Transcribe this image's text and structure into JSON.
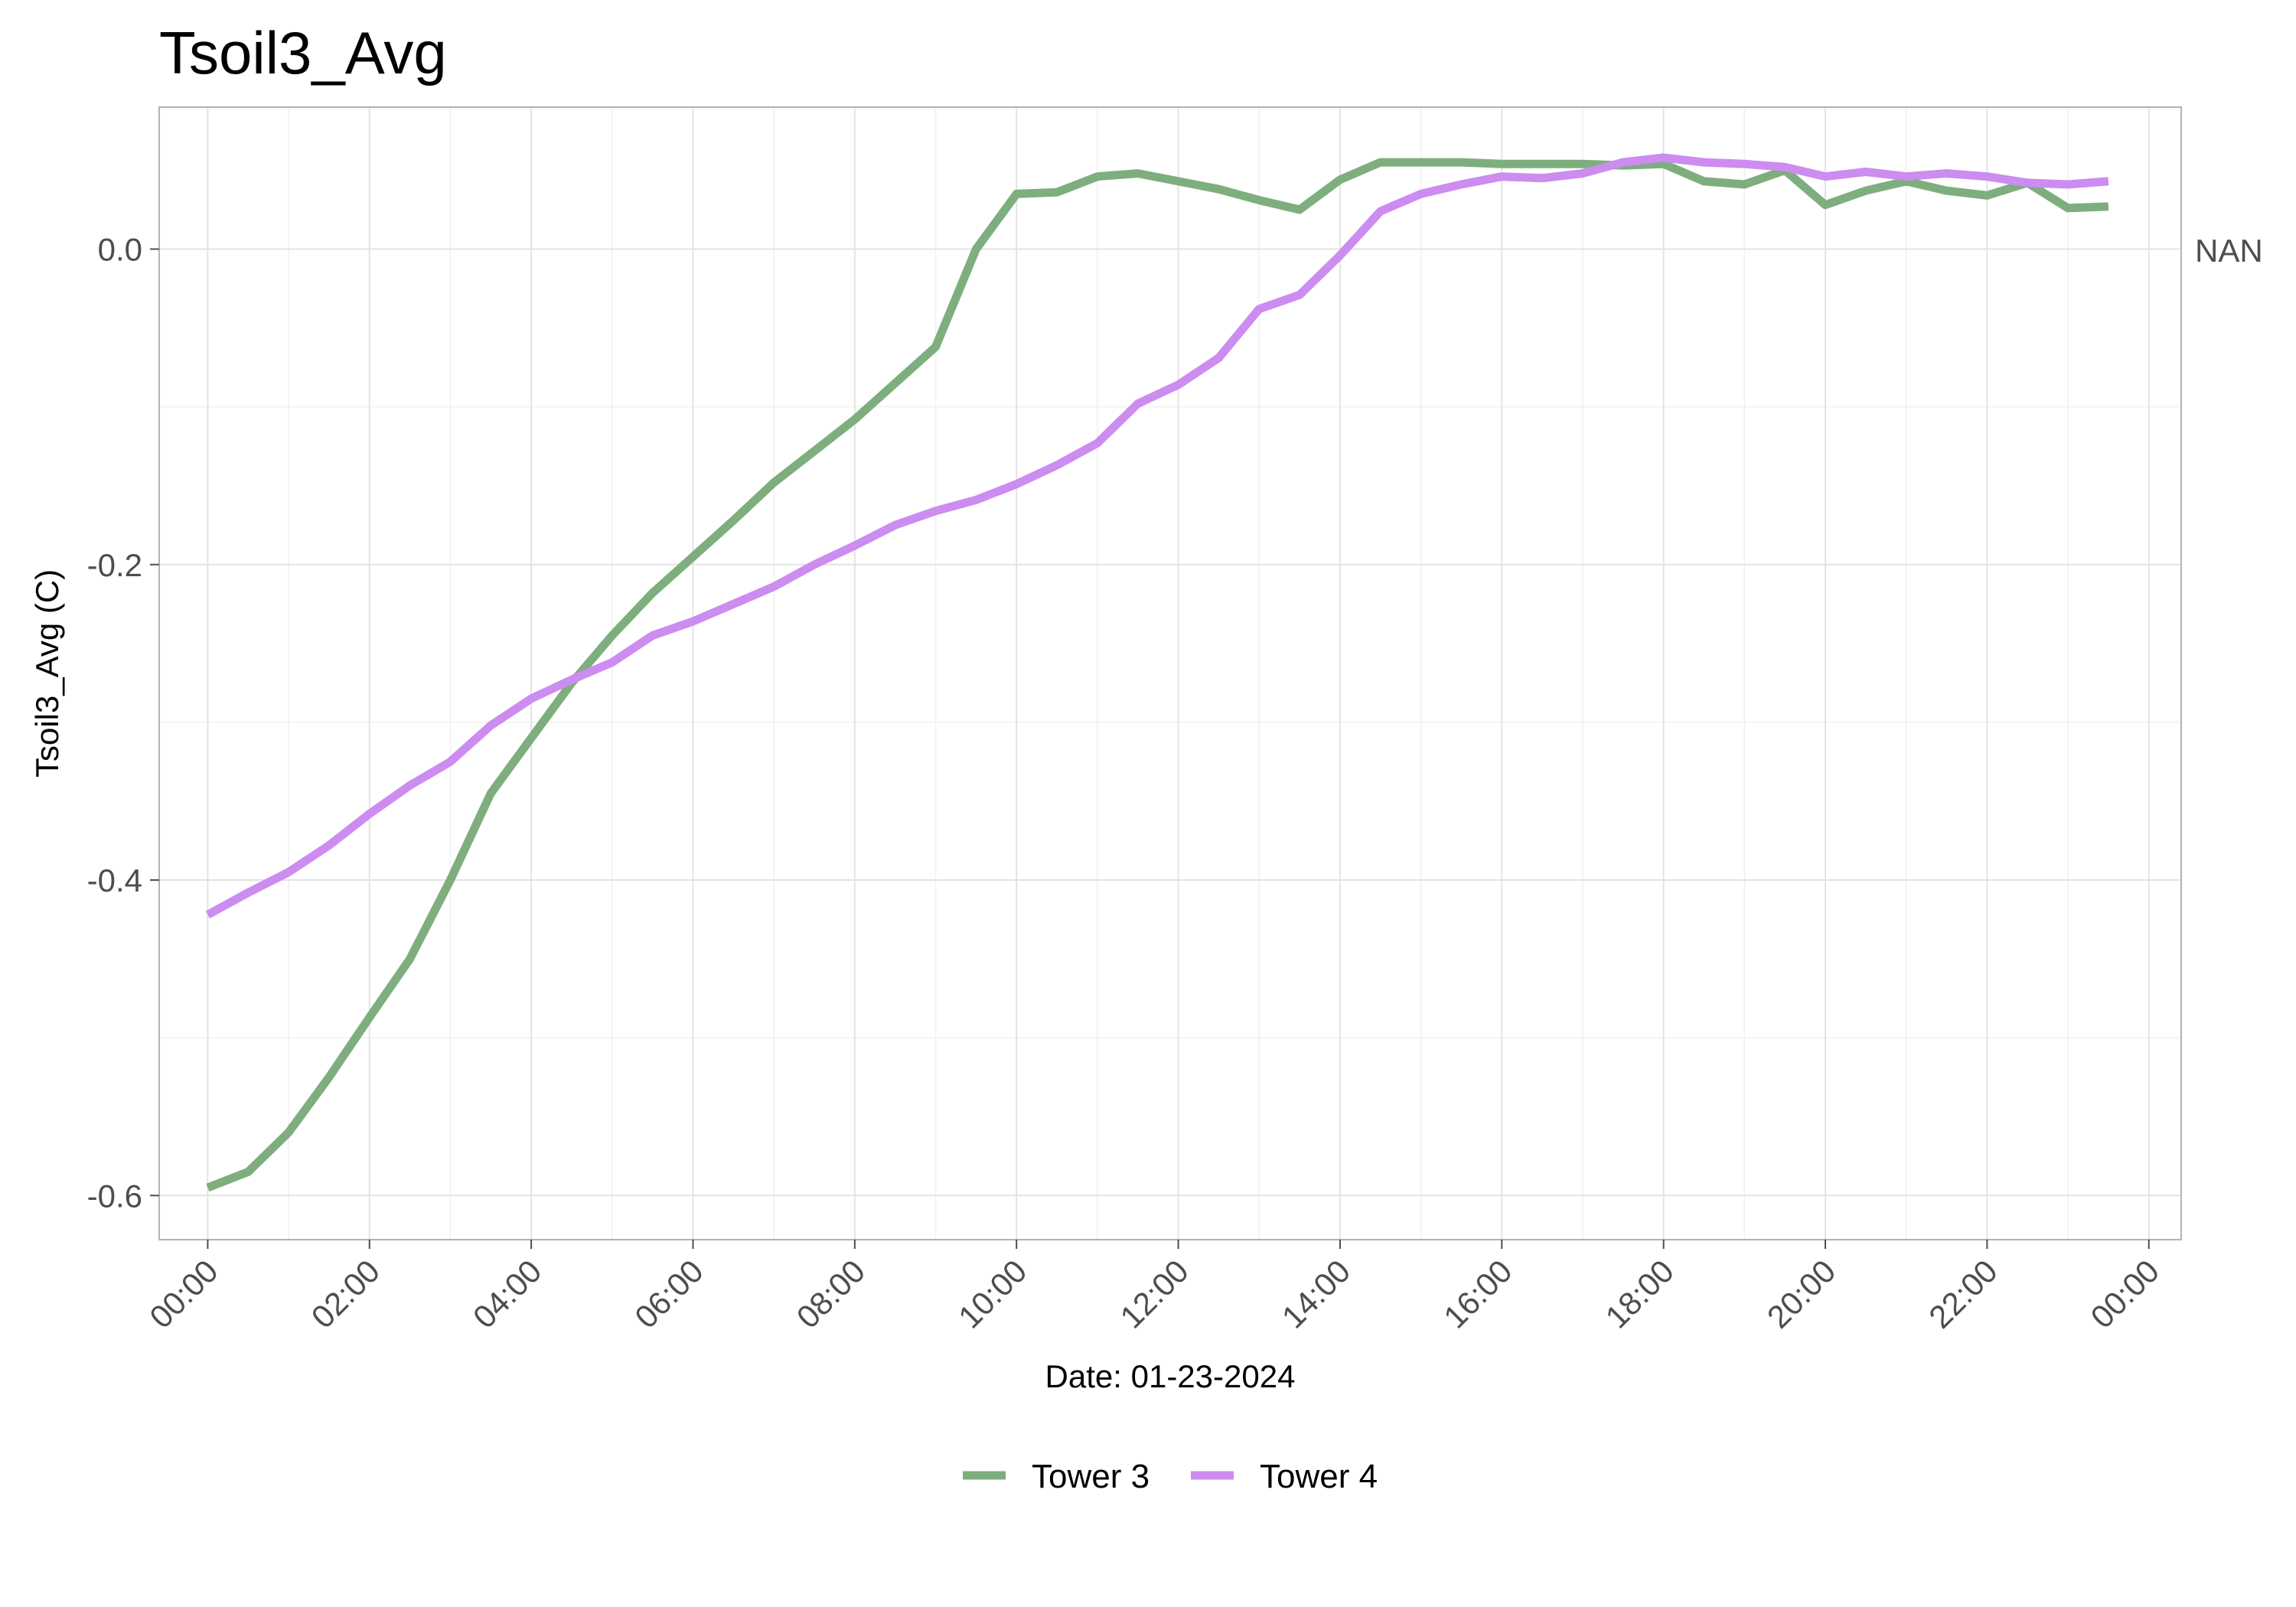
{
  "chart_data": {
    "type": "line",
    "title": "Tsoil3_Avg",
    "xlabel": "Date: 01-23-2024",
    "ylabel": "Tsoil3_Avg (C)",
    "secondary_axis_label": "NAN",
    "x_unit": "time of day (hours)",
    "xlim": [
      -0.6,
      24.4
    ],
    "ylim": [
      -0.628,
      0.09
    ],
    "x_ticks": [
      0,
      2,
      4,
      6,
      8,
      10,
      12,
      14,
      16,
      18,
      20,
      22,
      24
    ],
    "x_tick_labels": [
      "00:00",
      "02:00",
      "04:00",
      "06:00",
      "08:00",
      "10:00",
      "12:00",
      "14:00",
      "16:00",
      "18:00",
      "20:00",
      "22:00",
      "00:00"
    ],
    "y_ticks": [
      -0.6,
      -0.4,
      -0.2,
      0.0
    ],
    "y_tick_labels": [
      "-0.6",
      "-0.4",
      "-0.2",
      "0.0"
    ],
    "grid": true,
    "legend_position": "bottom",
    "series": [
      {
        "name": "Tower 3",
        "color": "#7eae7e",
        "x": [
          0,
          0.5,
          1,
          1.5,
          2,
          2.5,
          3,
          3.5,
          4,
          4.5,
          5,
          5.5,
          6,
          6.5,
          7,
          7.5,
          8,
          8.5,
          9,
          9.5,
          10,
          10.5,
          11,
          11.5,
          12,
          12.5,
          13,
          13.5,
          14,
          14.5,
          15,
          15.5,
          16,
          16.5,
          17,
          17.5,
          18,
          18.5,
          19,
          19.5,
          20,
          20.5,
          21,
          21.5,
          22,
          22.5,
          23,
          23.5
        ],
        "values": [
          -0.595,
          -0.585,
          -0.56,
          -0.525,
          -0.487,
          -0.45,
          -0.4,
          -0.345,
          -0.31,
          -0.275,
          -0.245,
          -0.218,
          -0.195,
          -0.172,
          -0.148,
          -0.128,
          -0.108,
          -0.085,
          -0.062,
          0.0,
          0.035,
          0.036,
          0.046,
          0.048,
          0.043,
          0.038,
          0.031,
          0.025,
          0.044,
          0.055,
          0.055,
          0.055,
          0.054,
          0.054,
          0.054,
          0.053,
          0.054,
          0.043,
          0.041,
          0.05,
          0.028,
          0.037,
          0.043,
          0.037,
          0.034,
          0.042,
          0.026,
          0.027
        ]
      },
      {
        "name": "Tower 4",
        "color": "#cc8cf0",
        "x": [
          0,
          0.5,
          1,
          1.5,
          2,
          2.5,
          3,
          3.5,
          4,
          4.5,
          5,
          5.5,
          6,
          6.5,
          7,
          7.5,
          8,
          8.5,
          9,
          9.5,
          10,
          10.5,
          11,
          11.5,
          12,
          12.5,
          13,
          13.5,
          14,
          14.5,
          15,
          15.5,
          16,
          16.5,
          17,
          17.5,
          18,
          18.5,
          19,
          19.5,
          20,
          20.5,
          21,
          21.5,
          22,
          22.5,
          23,
          23.5
        ],
        "values": [
          -0.422,
          -0.408,
          -0.395,
          -0.378,
          -0.358,
          -0.34,
          -0.325,
          -0.302,
          -0.285,
          -0.273,
          -0.262,
          -0.245,
          -0.236,
          -0.225,
          -0.214,
          -0.2,
          -0.188,
          -0.175,
          -0.166,
          -0.159,
          -0.149,
          -0.137,
          -0.123,
          -0.098,
          -0.086,
          -0.069,
          -0.038,
          -0.029,
          -0.004,
          0.024,
          0.035,
          0.041,
          0.046,
          0.045,
          0.048,
          0.055,
          0.058,
          0.055,
          0.054,
          0.052,
          0.046,
          0.049,
          0.046,
          0.048,
          0.046,
          0.042,
          0.041,
          0.043
        ]
      }
    ]
  }
}
